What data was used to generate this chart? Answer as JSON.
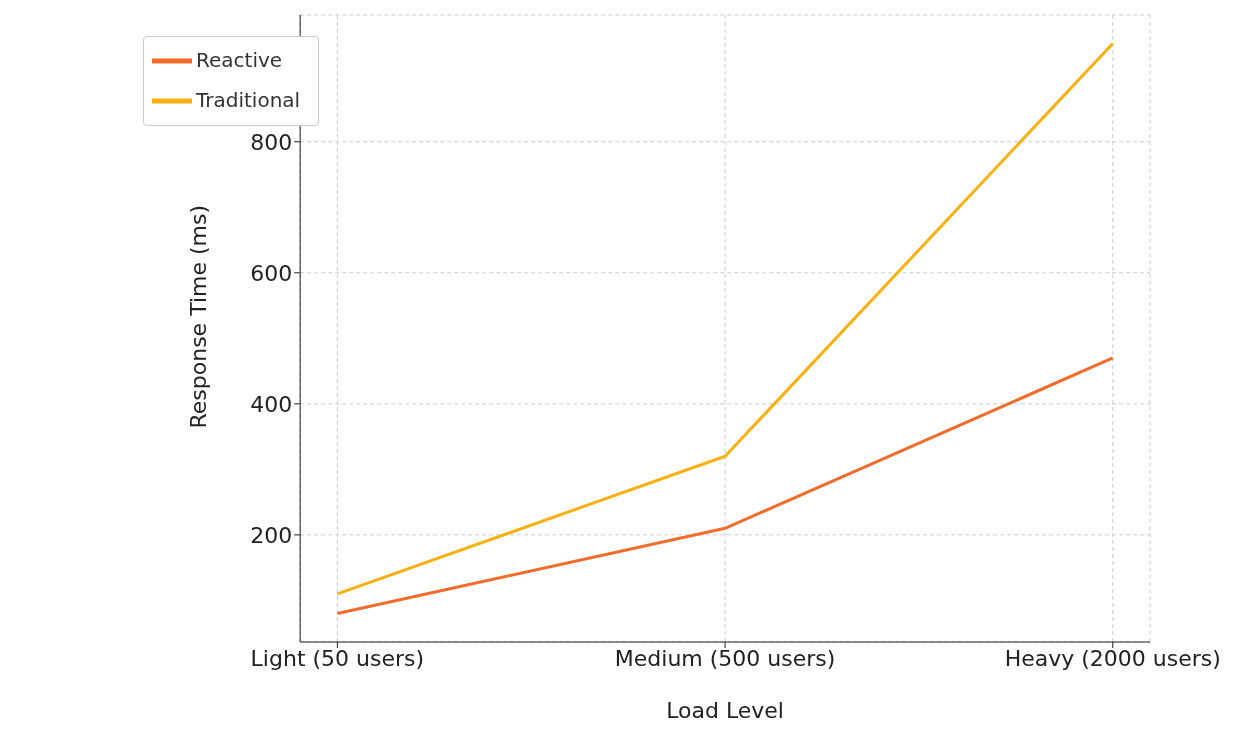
{
  "chart_data": {
    "type": "line",
    "xlabel": "Load Level",
    "ylabel": "Response Time (ms)",
    "categories": [
      "Light (50 users)",
      "Medium (500 users)",
      "Heavy (2000 users)"
    ],
    "series": [
      {
        "name": "Traditional",
        "color": "#fbb012",
        "values": [
          110,
          320,
          950
        ]
      },
      {
        "name": "Reactive",
        "color": "#f26b2a",
        "values": [
          80,
          210,
          470
        ]
      }
    ],
    "ylim": [
      36.5,
      993.5
    ],
    "yticks": [
      200,
      400,
      600,
      800
    ],
    "grid": true,
    "legend": "top left",
    "marker": "none",
    "line_style": "solid"
  }
}
